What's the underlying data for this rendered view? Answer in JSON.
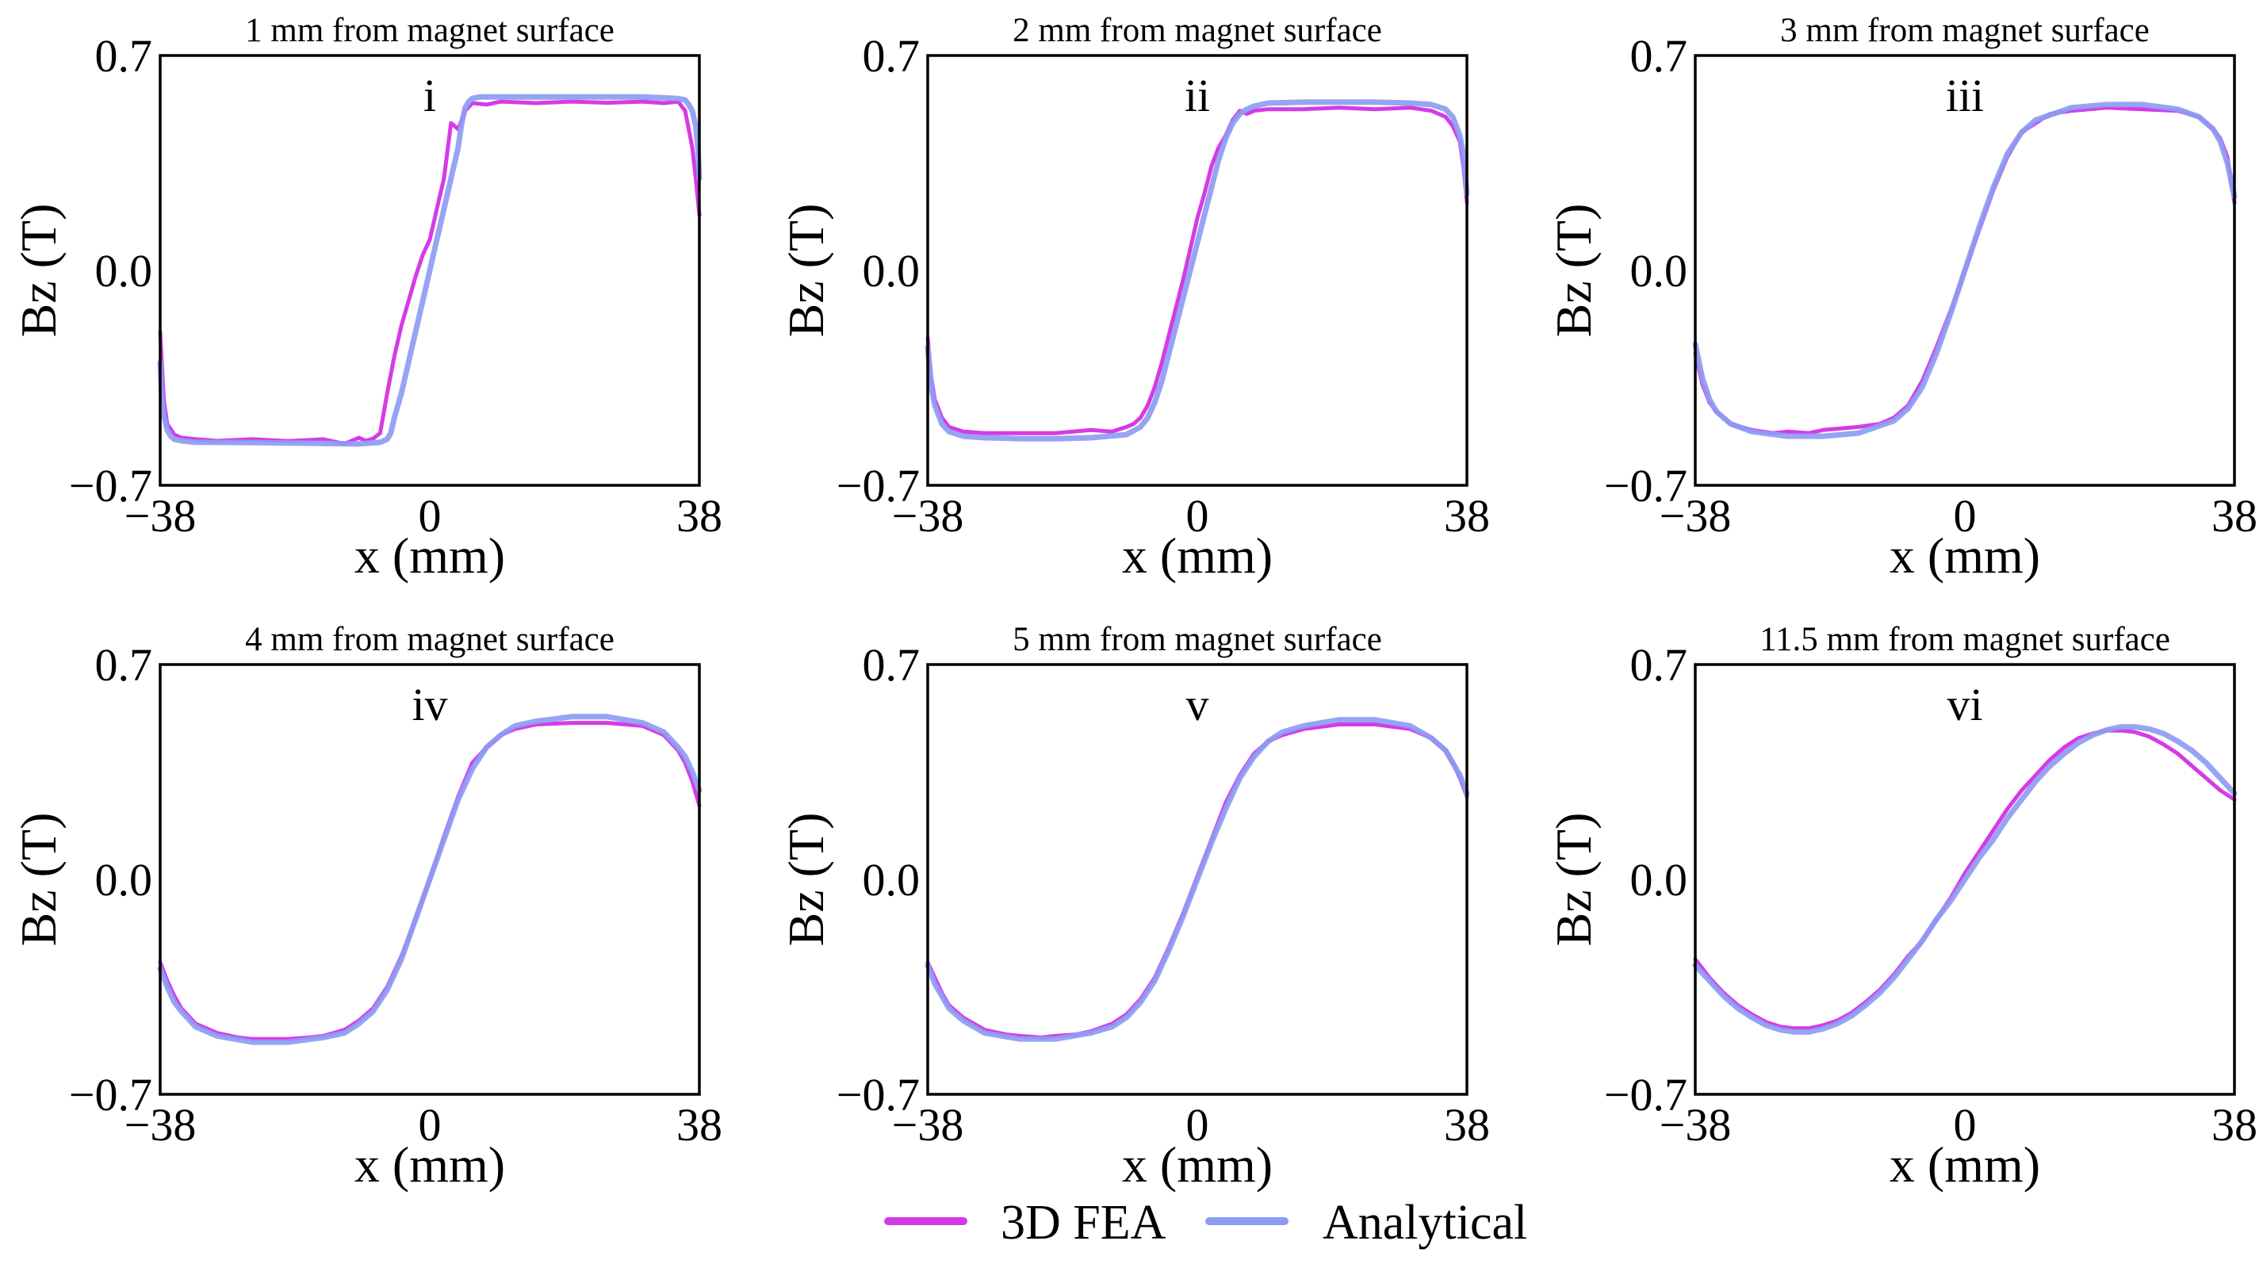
{
  "colors": {
    "fea": "#d63ae6",
    "analytical": "#8d9cf2",
    "axis": "#000000"
  },
  "legend": {
    "fea_label": "3D FEA",
    "analytical_label": "Analytical"
  },
  "chart_data": [
    {
      "type": "line",
      "id": "i",
      "title": "1 mm from magnet surface",
      "roman": "i",
      "xlabel": "x (mm)",
      "ylabel": "Bz (T)",
      "xlim": [
        -38,
        38
      ],
      "ylim": [
        -0.7,
        0.7
      ],
      "xticks": [
        "−38",
        "0",
        "38"
      ],
      "yticks": [
        "0.7",
        "0.0",
        "−0.7"
      ],
      "series": [
        {
          "name": "3D FEA",
          "x": [
            -38,
            -37.5,
            -37,
            -36,
            -35,
            -33,
            -30,
            -25,
            -20,
            -15,
            -12,
            -10,
            -9,
            -8,
            -7,
            -6,
            -5,
            -4,
            -3,
            -2,
            -1,
            0,
            1,
            2,
            3,
            4,
            5,
            6,
            8,
            10,
            15,
            20,
            25,
            30,
            33,
            35,
            36,
            37,
            37.5,
            38
          ],
          "y": [
            -0.2,
            -0.42,
            -0.5,
            -0.535,
            -0.545,
            -0.55,
            -0.555,
            -0.55,
            -0.556,
            -0.55,
            -0.565,
            -0.545,
            -0.555,
            -0.548,
            -0.53,
            -0.4,
            -0.28,
            -0.18,
            -0.1,
            -0.02,
            0.05,
            0.1,
            0.2,
            0.3,
            0.48,
            0.46,
            0.52,
            0.545,
            0.54,
            0.55,
            0.545,
            0.55,
            0.546,
            0.55,
            0.545,
            0.55,
            0.52,
            0.4,
            0.3,
            0.18
          ]
        },
        {
          "name": "Analytical",
          "x": [
            -38,
            -37.8,
            -37.5,
            -37,
            -36.5,
            -36,
            -35,
            -33,
            -30,
            -20,
            -10,
            -7,
            -6,
            -5.5,
            -5,
            -4,
            -3,
            -2,
            -1,
            0,
            1,
            2,
            3,
            4,
            4.5,
            5,
            5.5,
            6,
            7,
            10,
            20,
            30,
            33,
            35,
            36,
            36.5,
            37,
            37.5,
            37.8,
            38
          ],
          "y": [
            -0.3,
            -0.4,
            -0.47,
            -0.52,
            -0.54,
            -0.55,
            -0.555,
            -0.56,
            -0.56,
            -0.562,
            -0.565,
            -0.56,
            -0.55,
            -0.53,
            -0.48,
            -0.4,
            -0.3,
            -0.2,
            -0.1,
            0.0,
            0.1,
            0.2,
            0.3,
            0.4,
            0.48,
            0.53,
            0.55,
            0.56,
            0.565,
            0.565,
            0.565,
            0.565,
            0.562,
            0.56,
            0.555,
            0.54,
            0.52,
            0.47,
            0.4,
            0.3
          ]
        }
      ]
    },
    {
      "type": "line",
      "id": "ii",
      "title": "2 mm from magnet surface",
      "roman": "ii",
      "xlabel": "x (mm)",
      "ylabel": "Bz (T)",
      "xlim": [
        -38,
        38
      ],
      "ylim": [
        -0.7,
        0.7
      ],
      "xticks": [
        "−38",
        "0",
        "38"
      ],
      "yticks": [
        "0.7",
        "0.0",
        "−0.7"
      ],
      "series": [
        {
          "name": "3D FEA",
          "x": [
            -38,
            -37.5,
            -37,
            -36,
            -35,
            -33,
            -30,
            -25,
            -20,
            -15,
            -12,
            -10,
            -9,
            -8,
            -7,
            -6,
            -5,
            -4,
            -3,
            -2,
            -1,
            0,
            1,
            2,
            3,
            4,
            5,
            6,
            7,
            8,
            10,
            15,
            20,
            25,
            30,
            33,
            35,
            36,
            37,
            37.5,
            38
          ],
          "y": [
            -0.22,
            -0.35,
            -0.42,
            -0.48,
            -0.51,
            -0.525,
            -0.53,
            -0.53,
            -0.53,
            -0.52,
            -0.525,
            -0.51,
            -0.5,
            -0.48,
            -0.44,
            -0.38,
            -0.3,
            -0.21,
            -0.12,
            -0.03,
            0.07,
            0.17,
            0.25,
            0.34,
            0.4,
            0.44,
            0.49,
            0.52,
            0.51,
            0.52,
            0.525,
            0.525,
            0.53,
            0.525,
            0.53,
            0.52,
            0.5,
            0.47,
            0.42,
            0.34,
            0.22
          ]
        },
        {
          "name": "Analytical",
          "x": [
            -38,
            -37.5,
            -37,
            -36,
            -35,
            -33,
            -30,
            -25,
            -20,
            -15,
            -10,
            -8,
            -7,
            -6,
            -5,
            -4,
            -3,
            -2,
            -1,
            0,
            1,
            2,
            3,
            4,
            5,
            6,
            7,
            8,
            10,
            15,
            20,
            25,
            30,
            33,
            35,
            36,
            37,
            37.5,
            38
          ],
          "y": [
            -0.25,
            -0.38,
            -0.44,
            -0.5,
            -0.525,
            -0.54,
            -0.545,
            -0.548,
            -0.548,
            -0.545,
            -0.535,
            -0.51,
            -0.48,
            -0.43,
            -0.36,
            -0.27,
            -0.18,
            -0.09,
            0.0,
            0.09,
            0.18,
            0.27,
            0.36,
            0.43,
            0.48,
            0.51,
            0.525,
            0.535,
            0.545,
            0.548,
            0.548,
            0.548,
            0.545,
            0.54,
            0.525,
            0.5,
            0.44,
            0.38,
            0.25
          ]
        }
      ]
    },
    {
      "type": "line",
      "id": "iii",
      "title": "3 mm from magnet surface",
      "roman": "iii",
      "xlabel": "x (mm)",
      "ylabel": "Bz (T)",
      "xlim": [
        -38,
        38
      ],
      "ylim": [
        -0.7,
        0.7
      ],
      "xticks": [
        "−38",
        "0",
        "38"
      ],
      "yticks": [
        "0.7",
        "0.0",
        "−0.7"
      ],
      "series": [
        {
          "name": "3D FEA",
          "x": [
            -38,
            -37,
            -36,
            -35,
            -33,
            -30,
            -27,
            -25,
            -22,
            -20,
            -15,
            -12,
            -10,
            -8,
            -6,
            -4,
            -2,
            0,
            2,
            4,
            6,
            8,
            10,
            12,
            15,
            20,
            25,
            30,
            33,
            35,
            36,
            37,
            38
          ],
          "y": [
            -0.27,
            -0.37,
            -0.43,
            -0.46,
            -0.5,
            -0.52,
            -0.53,
            -0.525,
            -0.53,
            -0.52,
            -0.51,
            -0.5,
            -0.48,
            -0.44,
            -0.36,
            -0.25,
            -0.13,
            0.0,
            0.13,
            0.26,
            0.37,
            0.45,
            0.48,
            0.51,
            0.52,
            0.53,
            0.525,
            0.52,
            0.5,
            0.46,
            0.43,
            0.37,
            0.22
          ]
        },
        {
          "name": "Analytical",
          "x": [
            -38,
            -37,
            -36,
            -35,
            -33,
            -30,
            -25,
            -20,
            -15,
            -10,
            -8,
            -6,
            -4,
            -2,
            0,
            2,
            4,
            6,
            8,
            10,
            15,
            20,
            25,
            30,
            33,
            35,
            36,
            37,
            38
          ],
          "y": [
            -0.24,
            -0.35,
            -0.42,
            -0.46,
            -0.5,
            -0.525,
            -0.54,
            -0.54,
            -0.53,
            -0.49,
            -0.45,
            -0.38,
            -0.27,
            -0.14,
            0.0,
            0.14,
            0.27,
            0.38,
            0.45,
            0.49,
            0.53,
            0.54,
            0.54,
            0.525,
            0.5,
            0.46,
            0.42,
            0.35,
            0.24
          ]
        }
      ]
    },
    {
      "type": "line",
      "id": "iv",
      "title": "4 mm from magnet surface",
      "roman": "iv",
      "xlabel": "x (mm)",
      "ylabel": "Bz (T)",
      "xlim": [
        -38,
        38
      ],
      "ylim": [
        -0.7,
        0.7
      ],
      "xticks": [
        "−38",
        "0",
        "38"
      ],
      "yticks": [
        "0.7",
        "0.0",
        "−0.7"
      ],
      "series": [
        {
          "name": "3D FEA",
          "x": [
            -38,
            -37,
            -36,
            -35,
            -33,
            -30,
            -27,
            -25,
            -22,
            -20,
            -17,
            -15,
            -12,
            -10,
            -8,
            -6,
            -4,
            -2,
            0,
            2,
            4,
            6,
            8,
            10,
            12,
            15,
            20,
            25,
            30,
            33,
            35,
            36,
            37,
            38
          ],
          "y": [
            -0.27,
            -0.33,
            -0.38,
            -0.42,
            -0.47,
            -0.5,
            -0.515,
            -0.52,
            -0.52,
            -0.52,
            -0.515,
            -0.51,
            -0.49,
            -0.46,
            -0.42,
            -0.35,
            -0.25,
            -0.13,
            0.0,
            0.14,
            0.27,
            0.38,
            0.43,
            0.47,
            0.49,
            0.505,
            0.51,
            0.51,
            0.5,
            0.47,
            0.42,
            0.38,
            0.32,
            0.24
          ]
        },
        {
          "name": "Analytical",
          "x": [
            -38,
            -37,
            -36,
            -35,
            -33,
            -30,
            -25,
            -20,
            -15,
            -12,
            -10,
            -8,
            -6,
            -4,
            -2,
            0,
            2,
            4,
            6,
            8,
            10,
            12,
            15,
            20,
            25,
            30,
            33,
            35,
            36,
            37,
            38
          ],
          "y": [
            -0.29,
            -0.35,
            -0.4,
            -0.43,
            -0.48,
            -0.51,
            -0.53,
            -0.53,
            -0.515,
            -0.5,
            -0.47,
            -0.43,
            -0.36,
            -0.26,
            -0.13,
            0.0,
            0.13,
            0.26,
            0.36,
            0.43,
            0.47,
            0.5,
            0.515,
            0.53,
            0.53,
            0.51,
            0.48,
            0.43,
            0.4,
            0.35,
            0.29
          ]
        }
      ]
    },
    {
      "type": "line",
      "id": "v",
      "title": "5 mm from magnet surface",
      "roman": "v",
      "xlabel": "x (mm)",
      "ylabel": "Bz (T)",
      "xlim": [
        -38,
        38
      ],
      "ylim": [
        -0.7,
        0.7
      ],
      "xticks": [
        "−38",
        "0",
        "38"
      ],
      "yticks": [
        "0.7",
        "0.0",
        "−0.7"
      ],
      "series": [
        {
          "name": "3D FEA",
          "x": [
            -38,
            -37,
            -36,
            -35,
            -33,
            -30,
            -27,
            -25,
            -22,
            -20,
            -17,
            -15,
            -12,
            -10,
            -8,
            -6,
            -4,
            -2,
            0,
            2,
            4,
            6,
            8,
            10,
            12,
            15,
            20,
            25,
            30,
            33,
            35,
            36,
            37,
            38
          ],
          "y": [
            -0.27,
            -0.32,
            -0.37,
            -0.41,
            -0.45,
            -0.49,
            -0.505,
            -0.51,
            -0.515,
            -0.51,
            -0.505,
            -0.495,
            -0.47,
            -0.44,
            -0.39,
            -0.32,
            -0.22,
            -0.11,
            0.01,
            0.13,
            0.25,
            0.34,
            0.41,
            0.45,
            0.47,
            0.49,
            0.505,
            0.505,
            0.49,
            0.46,
            0.42,
            0.38,
            0.33,
            0.27
          ]
        },
        {
          "name": "Analytical",
          "x": [
            -38,
            -37,
            -36,
            -35,
            -33,
            -30,
            -25,
            -20,
            -15,
            -12,
            -10,
            -8,
            -6,
            -4,
            -2,
            0,
            2,
            4,
            6,
            8,
            10,
            12,
            15,
            20,
            25,
            30,
            33,
            35,
            36,
            37,
            38
          ],
          "y": [
            -0.28,
            -0.34,
            -0.38,
            -0.42,
            -0.46,
            -0.5,
            -0.52,
            -0.52,
            -0.5,
            -0.48,
            -0.45,
            -0.4,
            -0.33,
            -0.23,
            -0.12,
            0.0,
            0.12,
            0.23,
            0.33,
            0.4,
            0.45,
            0.48,
            0.5,
            0.52,
            0.52,
            0.5,
            0.46,
            0.42,
            0.38,
            0.34,
            0.28
          ]
        }
      ]
    },
    {
      "type": "line",
      "id": "vi",
      "title": "11.5 mm from magnet surface",
      "roman": "vi",
      "xlabel": "x (mm)",
      "ylabel": "Bz (T)",
      "xlim": [
        -38,
        38
      ],
      "ylim": [
        -0.7,
        0.7
      ],
      "xticks": [
        "−38",
        "0",
        "38"
      ],
      "yticks": [
        "0.7",
        "0.0",
        "−0.7"
      ],
      "series": [
        {
          "name": "3D FEA",
          "x": [
            -38,
            -36,
            -34,
            -32,
            -30,
            -28,
            -26,
            -24,
            -22,
            -20,
            -18,
            -16,
            -14,
            -12,
            -10,
            -8,
            -6,
            -4,
            -2,
            0,
            2,
            4,
            6,
            8,
            10,
            12,
            14,
            16,
            18,
            20,
            22,
            24,
            26,
            28,
            30,
            32,
            34,
            36,
            38
          ],
          "y": [
            -0.26,
            -0.32,
            -0.37,
            -0.41,
            -0.44,
            -0.465,
            -0.48,
            -0.485,
            -0.485,
            -0.475,
            -0.46,
            -0.435,
            -0.4,
            -0.36,
            -0.31,
            -0.25,
            -0.2,
            -0.13,
            -0.06,
            0.02,
            0.09,
            0.16,
            0.23,
            0.29,
            0.34,
            0.39,
            0.43,
            0.46,
            0.475,
            0.485,
            0.485,
            0.48,
            0.465,
            0.44,
            0.41,
            0.37,
            0.33,
            0.29,
            0.26
          ]
        },
        {
          "name": "Analytical",
          "x": [
            -38,
            -36,
            -34,
            -32,
            -30,
            -28,
            -26,
            -24,
            -22,
            -20,
            -18,
            -16,
            -14,
            -12,
            -10,
            -8,
            -6,
            -4,
            -2,
            0,
            2,
            4,
            6,
            8,
            10,
            12,
            14,
            16,
            18,
            20,
            22,
            24,
            26,
            28,
            30,
            32,
            34,
            36,
            38
          ],
          "y": [
            -0.28,
            -0.33,
            -0.38,
            -0.42,
            -0.45,
            -0.475,
            -0.49,
            -0.497,
            -0.497,
            -0.487,
            -0.47,
            -0.445,
            -0.41,
            -0.37,
            -0.32,
            -0.26,
            -0.2,
            -0.13,
            -0.07,
            0.0,
            0.07,
            0.13,
            0.2,
            0.26,
            0.32,
            0.37,
            0.41,
            0.445,
            0.47,
            0.487,
            0.497,
            0.497,
            0.49,
            0.475,
            0.45,
            0.42,
            0.38,
            0.33,
            0.28
          ]
        }
      ]
    }
  ]
}
